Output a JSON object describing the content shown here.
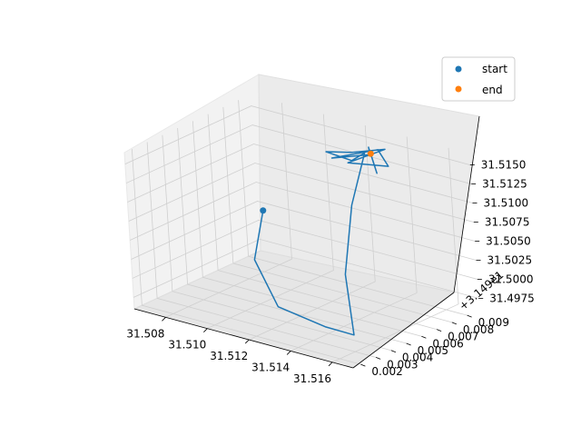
{
  "chart_data": {
    "type": "line",
    "projection": "3d",
    "grid": true,
    "legend_position": "top-right",
    "x_axis": {
      "ticks": [
        "31.508",
        "31.510",
        "31.512",
        "31.514",
        "31.516"
      ],
      "range": [
        31.5065,
        31.517
      ]
    },
    "y_axis": {
      "ticks": [
        "0.002",
        "0.003",
        "0.004",
        "0.005",
        "0.006",
        "0.007",
        "0.008",
        "0.009"
      ],
      "offset_label": "+3.149e1",
      "range": [
        0.0015,
        0.0098
      ]
    },
    "z_axis": {
      "ticks": [
        "31.4975",
        "31.5000",
        "31.5025",
        "31.5050",
        "31.5075",
        "31.5100",
        "31.5125",
        "31.5150"
      ],
      "range": [
        31.496,
        31.5165
      ]
    },
    "series": [
      {
        "kind": "line",
        "color": "#1f77b4",
        "points": [
          [
            31.5095,
            0.0062,
            31.5068
          ],
          [
            31.51,
            0.0048,
            31.502
          ],
          [
            31.512,
            0.0035,
            31.4985
          ],
          [
            31.515,
            0.0025,
            31.499
          ],
          [
            31.516,
            0.003,
            31.4982
          ],
          [
            31.515,
            0.004,
            31.5045
          ],
          [
            31.514,
            0.006,
            31.511
          ],
          [
            31.513,
            0.008,
            31.513
          ],
          [
            31.5125,
            0.009,
            31.514
          ],
          [
            31.512,
            0.0088,
            31.5128
          ],
          [
            31.511,
            0.0085,
            31.5135
          ],
          [
            31.5125,
            0.0082,
            31.5148
          ],
          [
            31.5135,
            0.009,
            31.5152
          ],
          [
            31.5128,
            0.0075,
            31.5143
          ],
          [
            31.514,
            0.0085,
            31.5138
          ],
          [
            31.513,
            0.0092,
            31.5146
          ],
          [
            31.5118,
            0.0078,
            31.5139
          ],
          [
            31.5133,
            0.0083,
            31.515
          ],
          [
            31.5124,
            0.0094,
            31.5143
          ],
          [
            31.5138,
            0.008,
            31.5132
          ],
          [
            31.5131,
            0.0086,
            31.5147
          ]
        ]
      }
    ],
    "markers": [
      {
        "label": "start",
        "color": "#1f77b4",
        "point": [
          31.5095,
          0.0062,
          31.5068
        ]
      },
      {
        "label": "end",
        "color": "#ff7f0e",
        "point": [
          31.5131,
          0.0086,
          31.5147
        ]
      }
    ],
    "legend": [
      {
        "label": "start",
        "color": "#1f77b4"
      },
      {
        "label": "end",
        "color": "#ff7f0e"
      }
    ]
  }
}
